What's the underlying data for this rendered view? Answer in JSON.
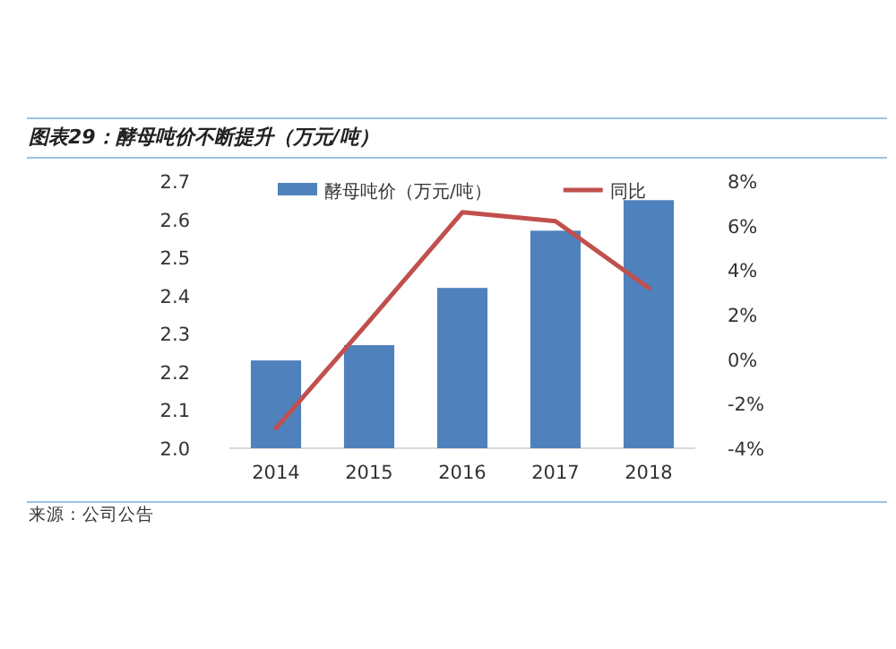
{
  "chart_data": {
    "type": "bar",
    "title": "图表29：酵母吨价不断提升（万元/吨）",
    "categories": [
      "2014",
      "2015",
      "2016",
      "2017",
      "2018"
    ],
    "series": [
      {
        "name": "酵母吨价（万元/吨）",
        "color": "#4f81bd",
        "values": [
          2.23,
          2.27,
          2.42,
          2.57,
          2.65
        ]
      },
      {
        "name": "同比",
        "type": "line",
        "axis": "y2",
        "color": "#c0504d",
        "values": [
          -3.1,
          1.7,
          6.6,
          6.2,
          3.2
        ]
      }
    ],
    "ylim": [
      2.0,
      2.7
    ],
    "yticks": [
      {
        "value": 2.0,
        "label": "2.0"
      },
      2.1,
      2.2,
      2.3,
      2.4,
      2.5,
      2.6,
      2.7
    ],
    "y2lim": [
      -4,
      8
    ],
    "y2ticks": [
      {
        "value": -4,
        "label": "-4%"
      },
      {
        "value": -2,
        "label": "-2%"
      },
      {
        "value": 0,
        "label": "0%"
      },
      {
        "value": 2,
        "label": "2%"
      },
      {
        "value": 4,
        "label": "4%"
      },
      {
        "value": 6,
        "label": "6%"
      },
      {
        "value": 8,
        "label": "8%"
      }
    ],
    "legend": "top",
    "marker": "none",
    "line_style": "solid",
    "annotations": [
      "来源：公司公告"
    ]
  }
}
